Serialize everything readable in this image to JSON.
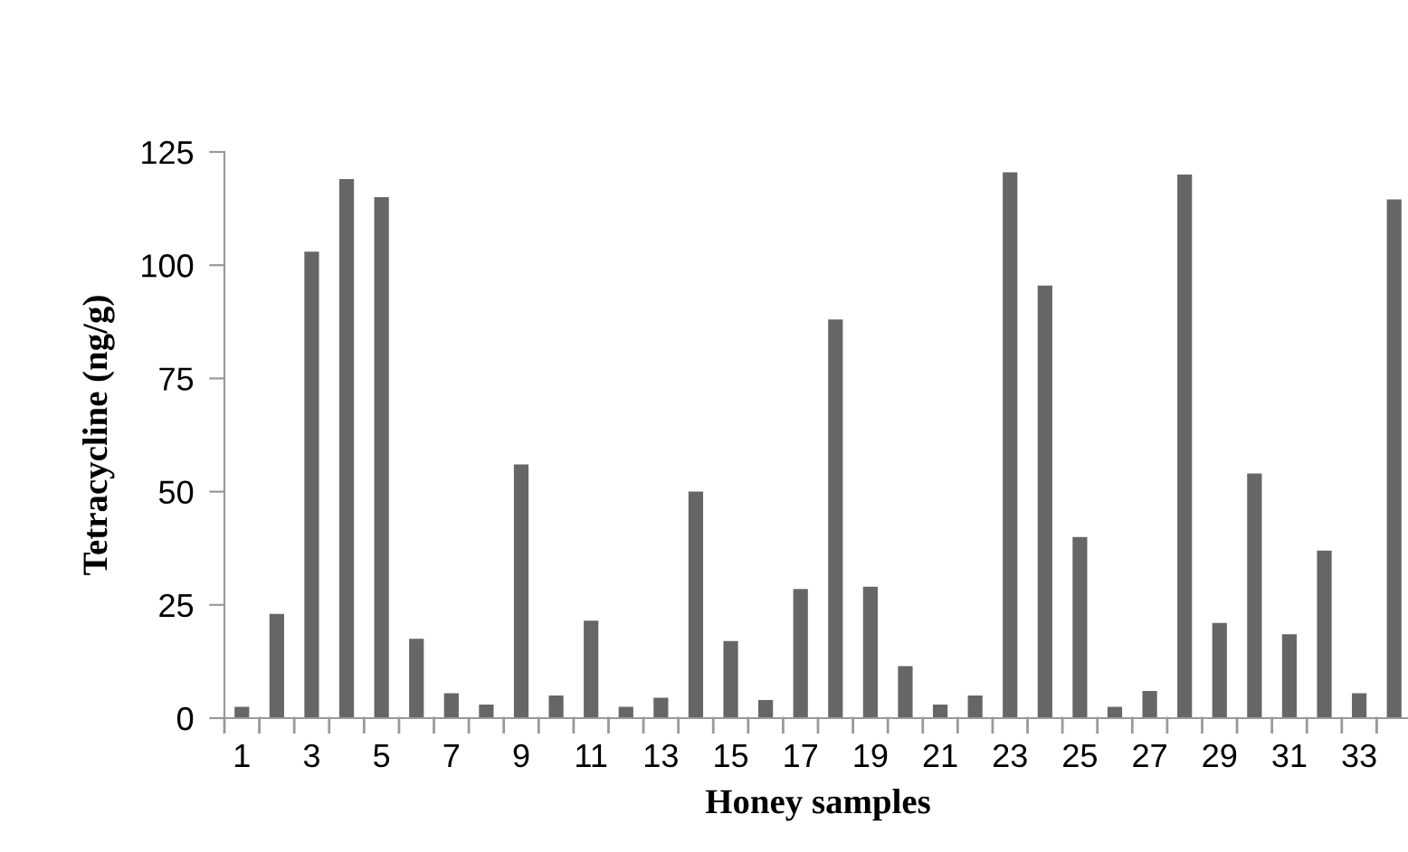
{
  "chart_data": {
    "type": "bar",
    "xlabel": "Honey samples",
    "ylabel": "Tetracycline (ng/g)",
    "categories": [
      "1",
      null,
      "3",
      null,
      "5",
      null,
      "7",
      null,
      "9",
      null,
      "11",
      null,
      "13",
      null,
      "15",
      null,
      "17",
      null,
      "19",
      null,
      "21",
      null,
      "23",
      null,
      "25",
      null,
      "27",
      null,
      "29",
      null,
      "31",
      null,
      "33",
      null
    ],
    "values": [
      2.5,
      23,
      103,
      119,
      115,
      17.5,
      5.5,
      3,
      56,
      5,
      21.5,
      2.5,
      4.5,
      50,
      17,
      4,
      28.5,
      88,
      29,
      11.5,
      3,
      5,
      120.5,
      95.5,
      40,
      2.5,
      6,
      120,
      21,
      54,
      18.5,
      37,
      5.5,
      114.5
    ],
    "color": "#666666",
    "ylim": [
      0,
      125
    ],
    "yticks": [
      0,
      25,
      50,
      75,
      100,
      125
    ],
    "grid": false,
    "legend": false
  }
}
